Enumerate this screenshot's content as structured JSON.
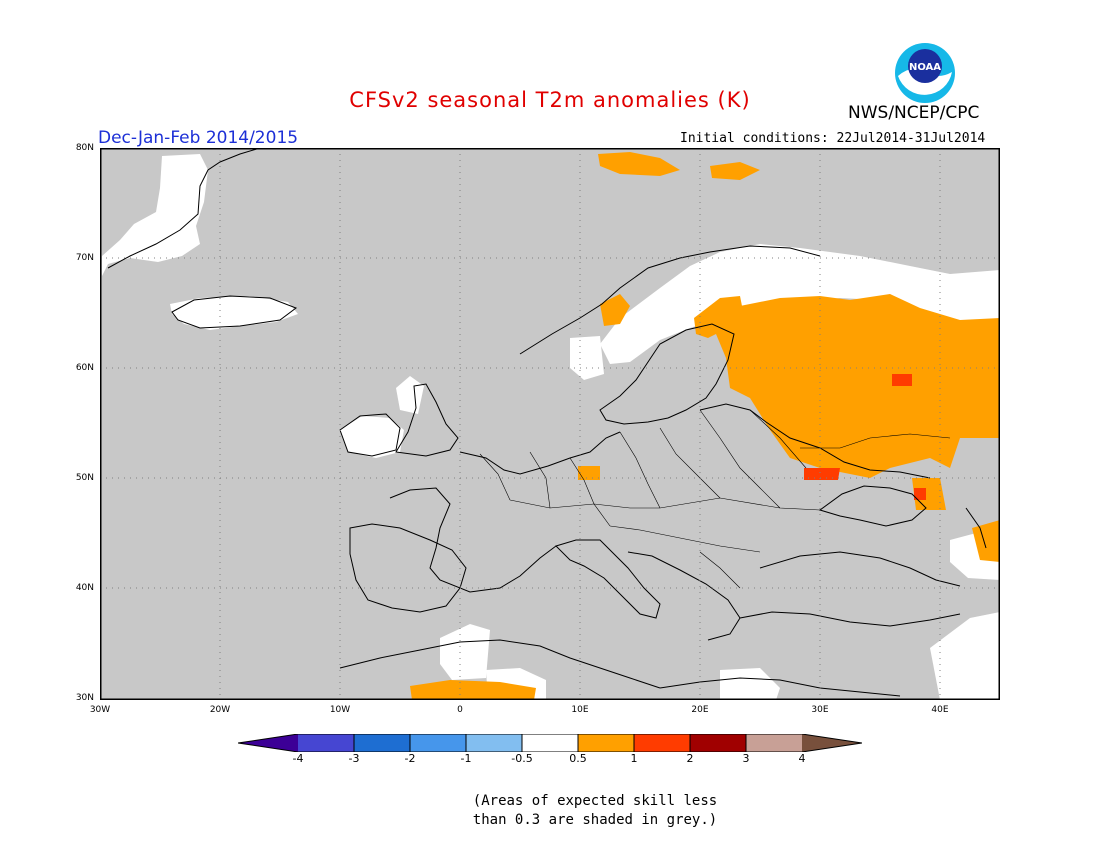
{
  "header": {
    "title": "CFSv2 seasonal T2m anomalies (K)",
    "agency": "NWS/NCEP/CPC",
    "logo_text": "NOAA",
    "season": "Dec-Jan-Feb 2014/2015",
    "init_conditions": "Initial conditions: 22Jul2014-31Jul2014"
  },
  "map": {
    "extent": {
      "lon_min": -30,
      "lon_max": 45,
      "lat_min": 30,
      "lat_max": 80
    },
    "lon_ticks": [
      "30W",
      "20W",
      "10W",
      "0",
      "10E",
      "20E",
      "30E",
      "40E"
    ],
    "lat_ticks": [
      "80N",
      "70N",
      "60N",
      "50N",
      "40N",
      "30N"
    ],
    "grid": true,
    "background": "#c8c8c8",
    "regions": [
      {
        "category": "0.5 to 1",
        "color": "#ffa000",
        "desc": "Western Russia / Baltic region"
      },
      {
        "category": "0.5 to 1",
        "color": "#ffa000",
        "desc": "Southern Finland / Karelia"
      },
      {
        "category": "0.5 to 1",
        "color": "#ffa000",
        "desc": "Central Norway"
      },
      {
        "category": "0.5 to 1",
        "color": "#ffa000",
        "desc": "Svalbard"
      },
      {
        "category": "0.5 to 1",
        "color": "#ffa000",
        "desc": "Northern Algeria"
      },
      {
        "category": "0.5 to 1",
        "color": "#ffa000",
        "desc": "Central Europe"
      },
      {
        "category": "0.5 to 1",
        "color": "#ffa000",
        "desc": "Northeast corner"
      },
      {
        "category": "1 to 2",
        "color": "#ff3c00",
        "desc": "Ukraine / southwest Russia"
      },
      {
        "category": "1 to 2",
        "color": "#ff3c00",
        "desc": "Russia near Moscow"
      },
      {
        "category": "-0.5 to 0.5",
        "color": "#ffffff",
        "desc": "Greenland"
      },
      {
        "category": "-0.5 to 0.5",
        "color": "#ffffff",
        "desc": "Iceland"
      },
      {
        "category": "-0.5 to 0.5",
        "color": "#ffffff",
        "desc": "Northern Scandinavia"
      },
      {
        "category": "-0.5 to 0.5",
        "color": "#ffffff",
        "desc": "Ireland"
      },
      {
        "category": "-0.5 to 0.5",
        "color": "#ffffff",
        "desc": "Northwest Africa"
      },
      {
        "category": "-0.5 to 0.5",
        "color": "#ffffff",
        "desc": "Middle East"
      }
    ]
  },
  "colorbar": {
    "labels": [
      "-4",
      "-3",
      "-2",
      "-1",
      "-0.5",
      "0.5",
      "1",
      "2",
      "3",
      "4"
    ],
    "colors": [
      "#3c0096",
      "#4646d2",
      "#1e6ed2",
      "#4696eb",
      "#82bef0",
      "#ffffff",
      "#ffa000",
      "#ff3c00",
      "#a00000",
      "#c8a096",
      "#78503c"
    ]
  },
  "note": {
    "line1": "(Areas of expected skill less",
    "line2": "than 0.3 are shaded in grey.)"
  }
}
